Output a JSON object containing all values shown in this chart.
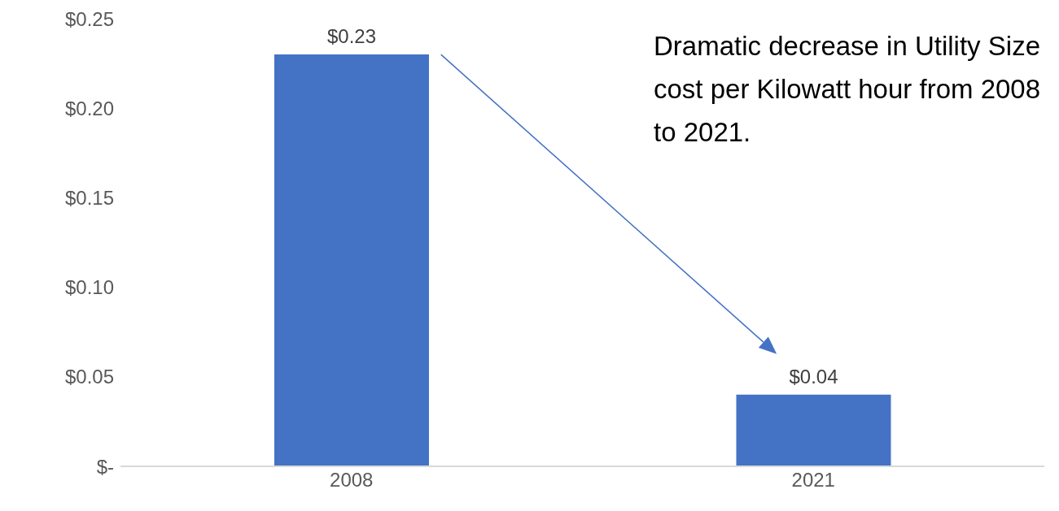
{
  "chart_data": {
    "type": "bar",
    "categories": [
      "2008",
      "2021"
    ],
    "values": [
      0.23,
      0.04
    ],
    "value_labels": [
      "$0.23",
      "$0.04"
    ],
    "color": "#4472c4",
    "ylim": [
      0,
      0.25
    ],
    "yticks": [
      {
        "value": 0,
        "label": "$-"
      },
      {
        "value": 0.05,
        "label": "$0.05"
      },
      {
        "value": 0.1,
        "label": "$0.10"
      },
      {
        "value": 0.15,
        "label": "$0.15"
      },
      {
        "value": 0.2,
        "label": "$0.20"
      },
      {
        "value": 0.25,
        "label": "$0.25"
      }
    ],
    "annotations": [
      "Dramatic decrease in Utility Size cost per Kilowatt hour from 2008 to 2021."
    ]
  }
}
